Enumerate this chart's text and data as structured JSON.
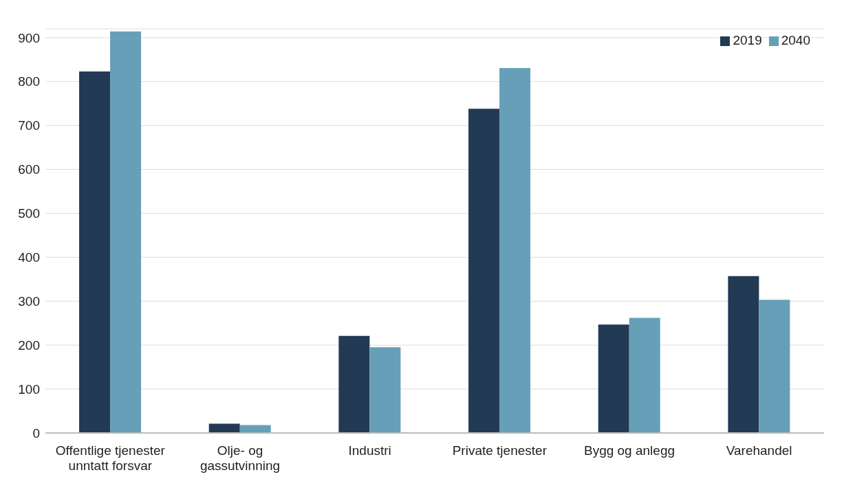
{
  "chart_data": {
    "type": "bar",
    "categories": [
      "Offentlige tjenester unntatt forsvar",
      "Olje- og gassutvinning",
      "Industri",
      "Private tjenester",
      "Bygg og anlegg",
      "Varehandel"
    ],
    "series": [
      {
        "name": "2019",
        "color": "#223a54",
        "values": [
          823,
          21,
          221,
          738,
          247,
          357
        ]
      },
      {
        "name": "2040",
        "color": "#679fb8",
        "values": [
          914,
          18,
          195,
          831,
          262,
          303
        ]
      }
    ],
    "ylim": [
      0,
      920
    ],
    "yticks": [
      0,
      100,
      200,
      300,
      400,
      500,
      600,
      700,
      800,
      900
    ],
    "grid": "y",
    "legend": "top right"
  }
}
